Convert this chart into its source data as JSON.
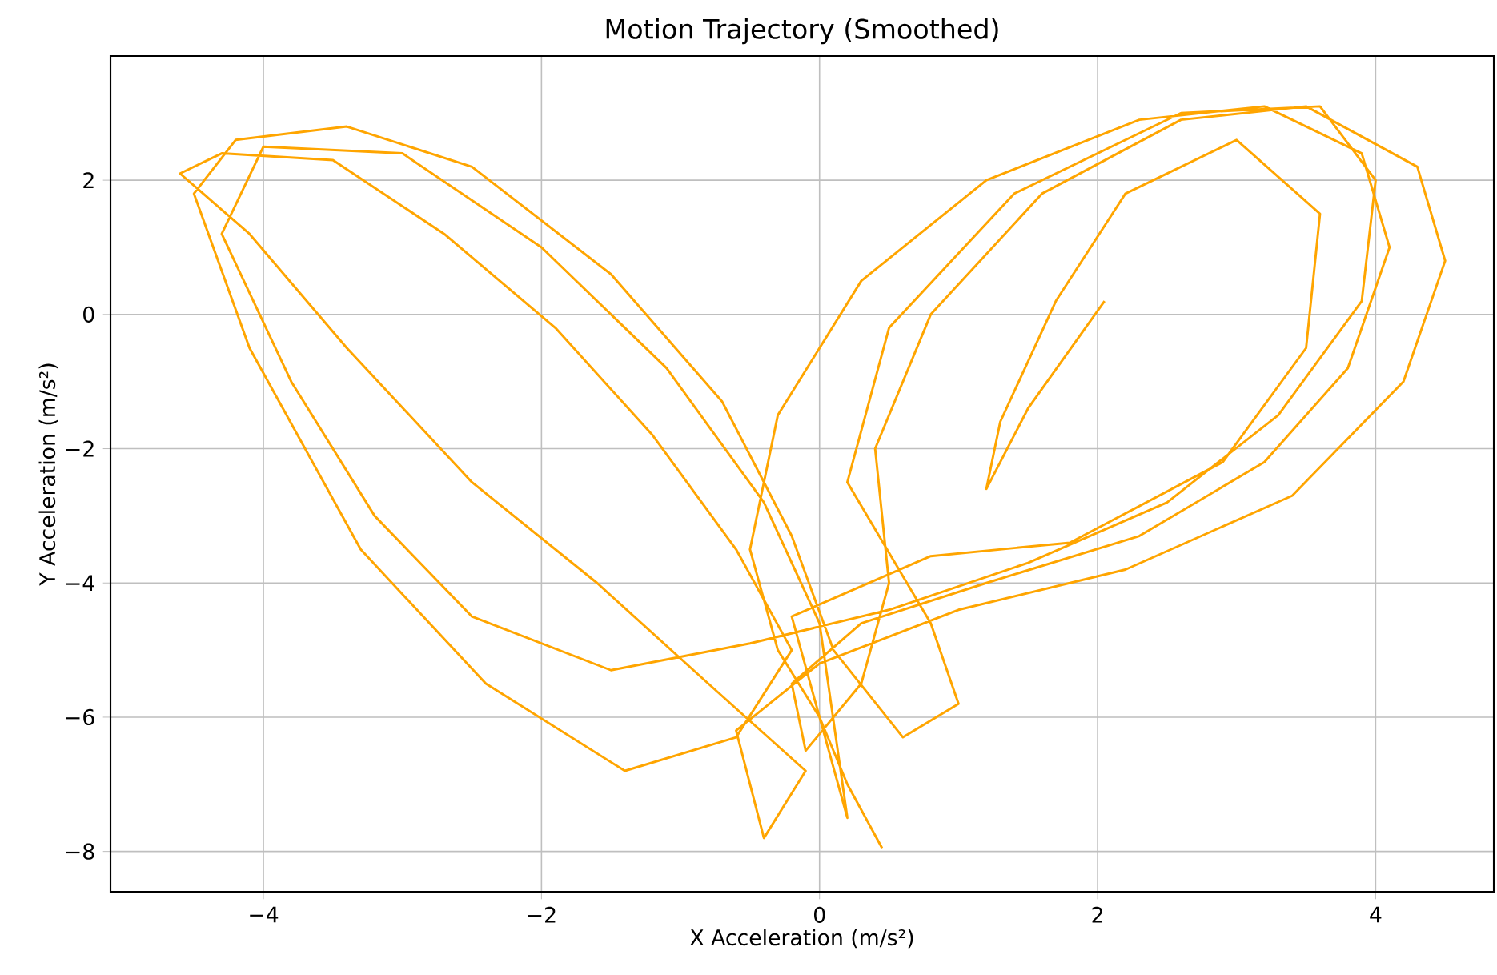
{
  "chart_data": {
    "type": "line",
    "title": "Motion Trajectory (Smoothed)",
    "xlabel": "X Acceleration (m/s²)",
    "ylabel": "Y Acceleration (m/s²)",
    "xlim": [
      -5.1,
      4.85
    ],
    "ylim": [
      -8.6,
      3.85
    ],
    "xticks": [
      {
        "value": -4,
        "label": "−4"
      },
      {
        "value": -2,
        "label": "−2"
      },
      0,
      2,
      4
    ],
    "yticks": [
      {
        "value": -8,
        "label": "−8"
      },
      {
        "value": -6,
        "label": "−6"
      },
      {
        "value": -4,
        "label": "−4"
      },
      {
        "value": -2,
        "label": "−2"
      },
      0,
      2
    ],
    "grid": true,
    "series": [
      {
        "color": "#ffa500",
        "x": [
          0.45,
          0.2,
          0,
          -0.3,
          -0.5,
          -0.3,
          0.3,
          1.2,
          2.3,
          3.2,
          3.9,
          4.1,
          3.8,
          3.2,
          2.3,
          1.2,
          0.3,
          -0.2,
          -0.1,
          0.3,
          0.5,
          0.4,
          0.8,
          1.6,
          2.6,
          3.5,
          4.3,
          4.5,
          4.2,
          3.4,
          2.2,
          1,
          0,
          -0.6,
          -0.4,
          -0.1,
          -0.8,
          -1.6,
          -2.5,
          -3.4,
          -4.1,
          -4.6,
          -4.3,
          -3.5,
          -2.7,
          -1.9,
          -1.2,
          -0.6,
          -0.2,
          -0.6,
          -1.4,
          -2.4,
          -3.3,
          -4.1,
          -4.5,
          -4.2,
          -3.4,
          -2.5,
          -1.5,
          -0.7,
          -0.2,
          0.1,
          0.6,
          1.0,
          0.8,
          0.2,
          0.5,
          1.4,
          2.6,
          3.6,
          4.0,
          3.9,
          3.3,
          2.5,
          1.5,
          0.5,
          -0.5,
          -1.5,
          -2.5,
          -3.2,
          -3.8,
          -4.3,
          -4.0,
          -3.0,
          -2.0,
          -1.1,
          -0.4,
          0.0,
          0.2,
          0.0,
          -0.2,
          0.8,
          1.8,
          2.9,
          3.5,
          3.6,
          3.0,
          2.2,
          1.7,
          1.3,
          1.2,
          1.5,
          2.05
        ],
        "values": [
          -7.95,
          -7,
          -6,
          -5,
          -3.5,
          -1.5,
          0.5,
          2,
          2.9,
          3.1,
          2.4,
          1,
          -0.8,
          -2.2,
          -3.3,
          -4,
          -4.6,
          -5.5,
          -6.5,
          -5.5,
          -4,
          -2,
          0,
          1.8,
          2.9,
          3.1,
          2.2,
          0.8,
          -1,
          -2.7,
          -3.8,
          -4.4,
          -5.2,
          -6.2,
          -7.8,
          -6.8,
          -5.5,
          -4,
          -2.5,
          -0.5,
          1.2,
          2.1,
          2.4,
          2.3,
          1.2,
          -0.2,
          -1.8,
          -3.5,
          -5,
          -6.3,
          -6.8,
          -5.5,
          -3.5,
          -0.5,
          1.8,
          2.6,
          2.8,
          2.2,
          0.6,
          -1.3,
          -3.3,
          -5,
          -6.3,
          -5.8,
          -4.6,
          -2.5,
          -0.2,
          1.8,
          3.0,
          3.1,
          2.0,
          0.2,
          -1.5,
          -2.8,
          -3.7,
          -4.4,
          -4.9,
          -5.3,
          -4.5,
          -3,
          -1,
          1.2,
          2.5,
          2.4,
          1.0,
          -0.8,
          -2.8,
          -4.6,
          -7.5,
          -6,
          -4.5,
          -3.6,
          -3.4,
          -2.2,
          -0.5,
          1.5,
          2.6,
          1.8,
          0.2,
          -1.6,
          -2.6,
          -1.4,
          0.2
        ]
      }
    ]
  }
}
